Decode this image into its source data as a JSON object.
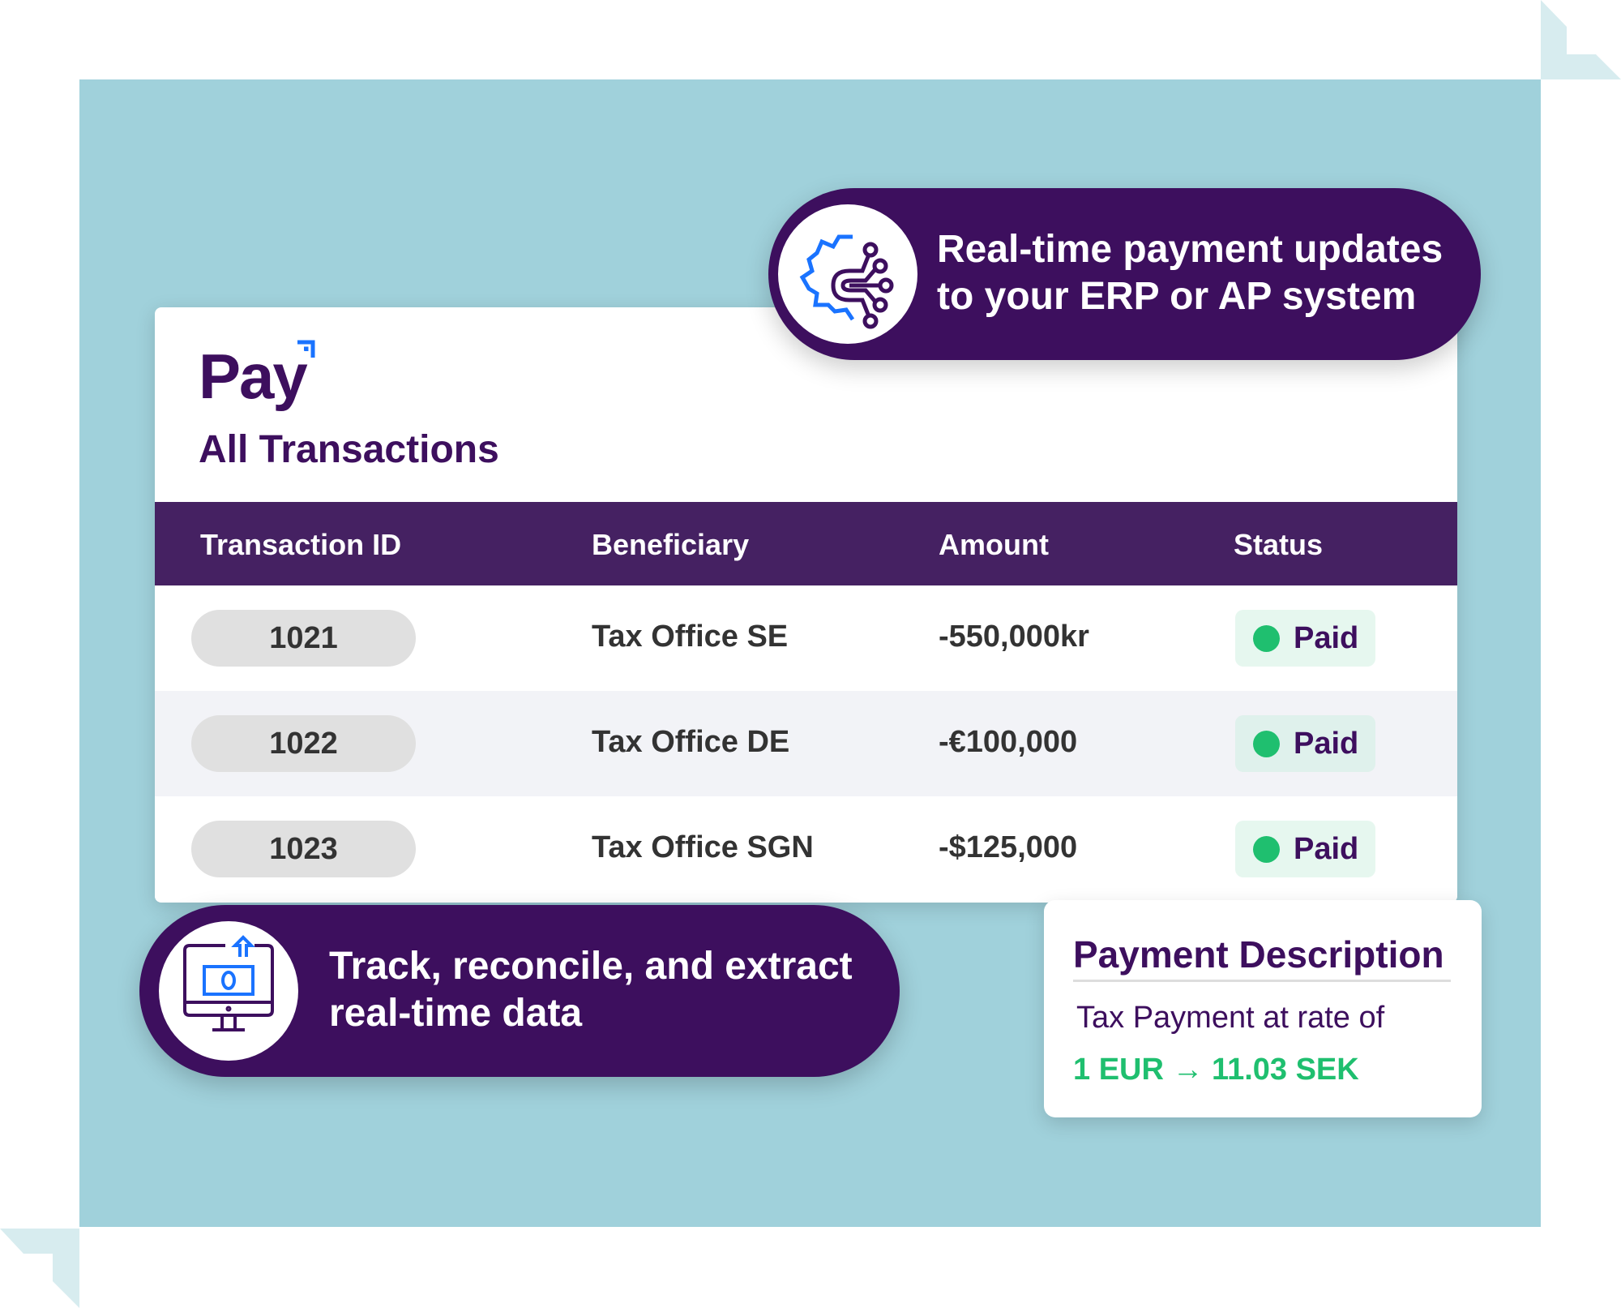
{
  "logo": {
    "text": "Pay"
  },
  "page_title": "All Transactions",
  "table": {
    "headers": [
      "Transaction ID",
      "Beneficiary",
      "Amount",
      "Status"
    ],
    "rows": [
      {
        "id": "1021",
        "beneficiary": "Tax Office SE",
        "amount": "-550,000kr",
        "status": "Paid"
      },
      {
        "id": "1022",
        "beneficiary": "Tax Office DE",
        "amount": "-€100,000",
        "status": "Paid"
      },
      {
        "id": "1023",
        "beneficiary": "Tax Office SGN",
        "amount": "-$125,000",
        "status": "Paid"
      }
    ]
  },
  "callout_top": {
    "line1": "Real-time payment updates",
    "line2": "to your ERP or AP system",
    "icon": "gear-circuit-icon"
  },
  "callout_bottom": {
    "line1": "Track, reconcile, and extract",
    "line2": "real-time data",
    "icon": "monitor-money-icon"
  },
  "payment_description": {
    "title": "Payment Description",
    "text": "Tax Payment at rate of",
    "rate": "1 EUR → 11.03 SEK"
  },
  "colors": {
    "brand_purple": "#3d0f5e",
    "header_purple": "#452162",
    "background_teal": "#a0d1db",
    "paid_green": "#1fbf6f",
    "accent_blue": "#1a73ff"
  }
}
